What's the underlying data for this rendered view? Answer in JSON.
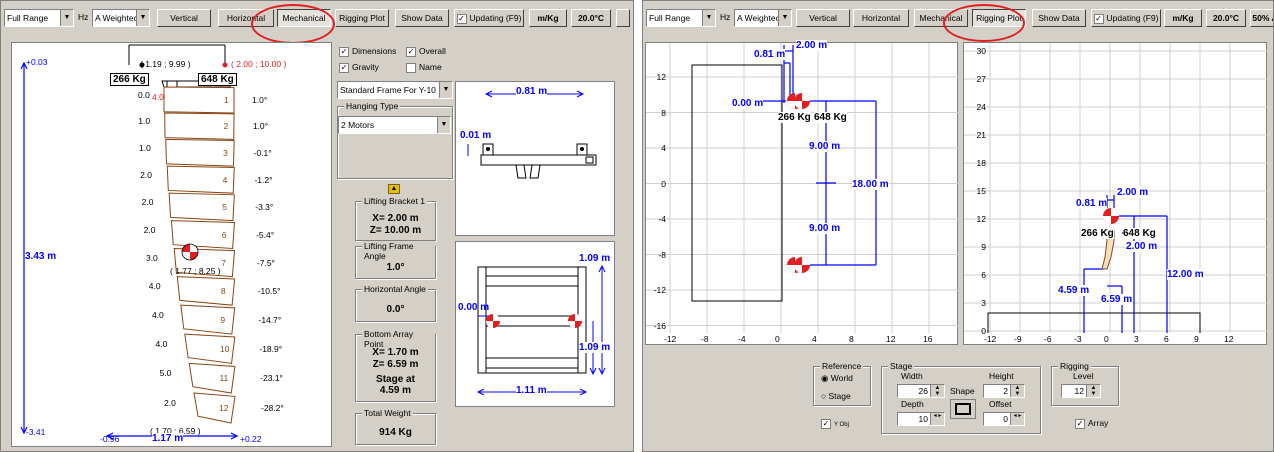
{
  "toolbar": {
    "range_select": "Full Range",
    "hz_label": "Hz",
    "weighting_select": "A Weightec",
    "vertical": "Vertical",
    "horizontal": "Horizontal",
    "mechanical": "Mechanical",
    "rigging_plot": "Rigging Plot",
    "show_data": "Show Data",
    "updating": "Updating (F9)",
    "units": "m/Kg",
    "temperature": "20.0°C",
    "humidity": "50% A"
  },
  "left": {
    "array": {
      "top_value": "+0.03",
      "bottom_value": "-3.41",
      "height_dim": "3.43 m",
      "left_point": "( 1.19 ; 9.99 )",
      "right_point": "( 2.00 ; 10.00 )",
      "left_weight": "266 Kg",
      "right_weight": "648 Kg",
      "cog_label": "( 1.77 ; 8.25 )",
      "bottom_point": "( 1.70 ; 6.59 )",
      "width_left": "-0.96",
      "width_dim": "1.17 m",
      "width_right": "+0.22",
      "top_offset": "4.0",
      "cabinets": [
        {
          "n": "1",
          "angle": "1.0°",
          "offset": "0.0"
        },
        {
          "n": "2",
          "angle": "1.0°",
          "offset": "1.0"
        },
        {
          "n": "3",
          "angle": "-0.1°",
          "offset": "1.0"
        },
        {
          "n": "4",
          "angle": "-1.2°",
          "offset": "2.0"
        },
        {
          "n": "5",
          "angle": "-3.3°",
          "offset": "2.0"
        },
        {
          "n": "6",
          "angle": "-5.4°",
          "offset": "2.0"
        },
        {
          "n": "7",
          "angle": "-7.5°",
          "offset": "3.0"
        },
        {
          "n": "8",
          "angle": "-10.5°",
          "offset": "4.0"
        },
        {
          "n": "9",
          "angle": "-14.7°",
          "offset": "4.0"
        },
        {
          "n": "10",
          "angle": "-18.9°",
          "offset": "4.0"
        },
        {
          "n": "11",
          "angle": "-23.1°",
          "offset": "5.0"
        },
        {
          "n": "12",
          "angle": "-28.2°",
          "offset": "2.0"
        }
      ]
    },
    "options": {
      "dimensions": "Dimensions",
      "overall": "Overall",
      "gravity": "Gravity",
      "name": "Name",
      "frame_select": "Standard Frame For Y-10",
      "hanging_type_title": "Hanging Type",
      "hanging_select": "2 Motors"
    },
    "info": {
      "bracket_title": "Lifting Bracket 1",
      "bracket_x": "X= 2.00 m",
      "bracket_z": "Z= 10.00 m",
      "frame_angle_title": "Lifting Frame Angle",
      "frame_angle": "1.0°",
      "horiz_angle_title": "Horizontal Angle",
      "horiz_angle": "0.0°",
      "bottom_title": "Bottom Array Point",
      "bottom_x": "X= 1.70 m",
      "bottom_z": "Z= 6.59 m",
      "stage_at": "Stage at",
      "stage_val": "4.59 m",
      "total_weight_title": "Total Weight",
      "total_weight": "914 Kg"
    },
    "frame_side": {
      "top_dim": "0.81 m",
      "left_dim": "0.01 m"
    },
    "frame_top": {
      "height_dim": "1.09 m",
      "height_dim2": "1.09 m",
      "offset_dim": "0.00 m",
      "width_dim": "1.11 m"
    }
  },
  "right": {
    "plot1": {
      "y_ticks": [
        "12",
        "8",
        "4",
        "0",
        "-4",
        "-8",
        "-12",
        "-16"
      ],
      "x_ticks": [
        "-12",
        "-8",
        "-4",
        "0",
        "4",
        "8",
        "12",
        "16"
      ],
      "dim_top": "2.00 m",
      "dim_081": "0.81 m",
      "dim_000": "0.00 m",
      "left_weight": "266 Kg",
      "right_weight": "648 Kg",
      "upper_span": "9.00 m",
      "lower_span": "9.00 m",
      "total_span": "18.00 m"
    },
    "plot2": {
      "y_ticks": [
        "30",
        "27",
        "24",
        "21",
        "18",
        "15",
        "12",
        "9",
        "6",
        "3",
        "0"
      ],
      "x_ticks": [
        "-12",
        "-9",
        "-6",
        "-3",
        "0",
        "3",
        "6",
        "9",
        "12"
      ],
      "dim_200": "2.00 m",
      "dim_081": "0.81 m",
      "left_weight": "266 Kg",
      "right_weight": "648 Kg",
      "dim_200b": "2.00 m",
      "dim_1200": "12.00 m",
      "dim_459": "4.59 m",
      "dim_659": "6.59 m"
    },
    "controls": {
      "reference_title": "Reference",
      "world": "World",
      "stage": "Stage",
      "flip_label": "Y Obj",
      "stage_title": "Stage",
      "width_label": "Width",
      "width_val": "26",
      "height_label": "Height",
      "height_val": "2",
      "shape_label": "Shape",
      "depth_label": "Depth",
      "depth_val": "10",
      "offset_label": "Offset",
      "offset_val": "0",
      "rigging_title": "Rigging",
      "level_label": "Level",
      "level_val": "12",
      "array_label": "Array"
    }
  },
  "colors": {
    "accent": "#0000ff",
    "annotation": "#e02020",
    "cabinet": "#8b4513",
    "face": "#d4d0c8"
  }
}
